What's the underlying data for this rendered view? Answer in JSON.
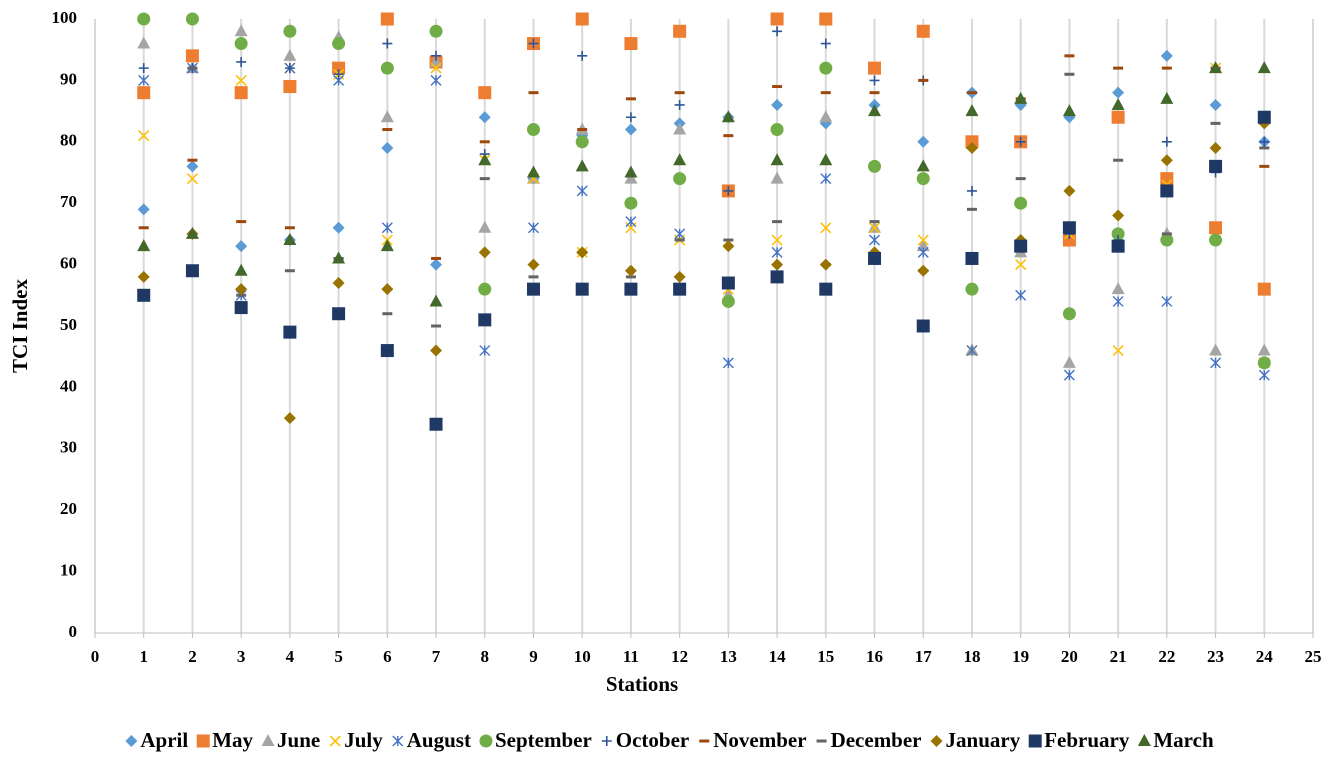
{
  "chart_data": {
    "type": "scatter",
    "x_label": "Stations",
    "y_label": "TCI Index",
    "x": [
      1,
      2,
      3,
      4,
      5,
      6,
      7,
      8,
      9,
      10,
      11,
      12,
      13,
      14,
      15,
      16,
      17,
      18,
      19,
      20,
      21,
      22,
      23,
      24
    ],
    "xlim": [
      0,
      25
    ],
    "xticks": [
      0,
      1,
      2,
      3,
      4,
      5,
      6,
      7,
      8,
      9,
      10,
      11,
      12,
      13,
      14,
      15,
      16,
      17,
      18,
      19,
      20,
      21,
      22,
      23,
      24,
      25
    ],
    "ylim": [
      0,
      100
    ],
    "yticks": [
      0,
      10,
      20,
      30,
      40,
      50,
      60,
      70,
      80,
      90,
      100
    ],
    "grid": "x",
    "legend": "bottom",
    "series": [
      {
        "name": "April",
        "color": "#5b9bd5",
        "marker": "diamond",
        "values": [
          69,
          76,
          63,
          64,
          66,
          79,
          60,
          84,
          74,
          81,
          82,
          83,
          84,
          86,
          83,
          86,
          80,
          88,
          86,
          84,
          88,
          94,
          86,
          80
        ]
      },
      {
        "name": "May",
        "color": "#ed7d31",
        "marker": "square",
        "values": [
          88,
          94,
          88,
          89,
          92,
          100,
          93,
          88,
          96,
          100,
          96,
          98,
          72,
          100,
          100,
          92,
          98,
          80,
          80,
          64,
          84,
          74,
          66,
          56
        ]
      },
      {
        "name": "June",
        "color": "#a5a5a5",
        "marker": "triangle",
        "values": [
          96,
          92,
          98,
          94,
          97,
          84,
          93,
          66,
          74,
          82,
          74,
          82,
          55,
          74,
          84,
          66,
          63,
          46,
          62,
          44,
          56,
          65,
          46,
          46
        ]
      },
      {
        "name": "July",
        "color": "#ffc000",
        "marker": "x",
        "values": [
          81,
          74,
          90,
          92,
          91,
          64,
          92,
          77,
          74,
          62,
          66,
          64,
          56,
          64,
          66,
          66,
          64,
          46,
          60,
          65,
          46,
          73,
          92,
          44
        ]
      },
      {
        "name": "August",
        "color": "#4472c4",
        "marker": "star",
        "values": [
          90,
          92,
          55,
          92,
          90,
          66,
          90,
          46,
          66,
          72,
          67,
          65,
          44,
          62,
          74,
          64,
          62,
          46,
          55,
          42,
          54,
          54,
          44,
          42
        ]
      },
      {
        "name": "September",
        "color": "#70ad47",
        "marker": "circle",
        "values": [
          100,
          100,
          96,
          98,
          96,
          92,
          98,
          56,
          82,
          80,
          70,
          74,
          54,
          82,
          92,
          76,
          74,
          56,
          70,
          52,
          65,
          64,
          64,
          44
        ]
      },
      {
        "name": "October",
        "color": "#2f5597",
        "marker": "plus",
        "values": [
          92,
          92,
          93,
          92,
          91,
          96,
          94,
          78,
          96,
          94,
          84,
          86,
          72,
          98,
          96,
          90,
          90,
          72,
          80,
          65,
          64,
          80,
          75,
          80
        ]
      },
      {
        "name": "November",
        "color": "#9e480e",
        "marker": "dash",
        "values": [
          66,
          77,
          67,
          66,
          61,
          82,
          61,
          80,
          88,
          82,
          87,
          88,
          81,
          89,
          88,
          88,
          90,
          88,
          87,
          94,
          92,
          92,
          92,
          76
        ]
      },
      {
        "name": "December",
        "color": "#636363",
        "marker": "dash",
        "values": [
          55,
          92,
          55,
          59,
          61,
          52,
          50,
          74,
          58,
          62,
          58,
          64,
          64,
          67,
          60,
          67,
          59,
          69,
          74,
          91,
          77,
          65,
          83,
          79
        ]
      },
      {
        "name": "January",
        "color": "#997300",
        "marker": "diamond",
        "values": [
          58,
          65,
          56,
          35,
          57,
          56,
          46,
          62,
          60,
          62,
          59,
          58,
          63,
          60,
          60,
          62,
          59,
          79,
          64,
          72,
          68,
          77,
          79,
          83
        ]
      },
      {
        "name": "February",
        "color": "#203864",
        "marker": "square",
        "values": [
          55,
          59,
          53,
          49,
          52,
          46,
          34,
          51,
          56,
          56,
          56,
          56,
          57,
          58,
          56,
          61,
          50,
          61,
          63,
          66,
          63,
          72,
          76,
          84
        ]
      },
      {
        "name": "March",
        "color": "#43682b",
        "marker": "triangle",
        "values": [
          63,
          65,
          59,
          64,
          61,
          63,
          54,
          77,
          75,
          76,
          75,
          77,
          84,
          77,
          77,
          85,
          76,
          85,
          87,
          85,
          86,
          87,
          92,
          92
        ]
      }
    ]
  }
}
